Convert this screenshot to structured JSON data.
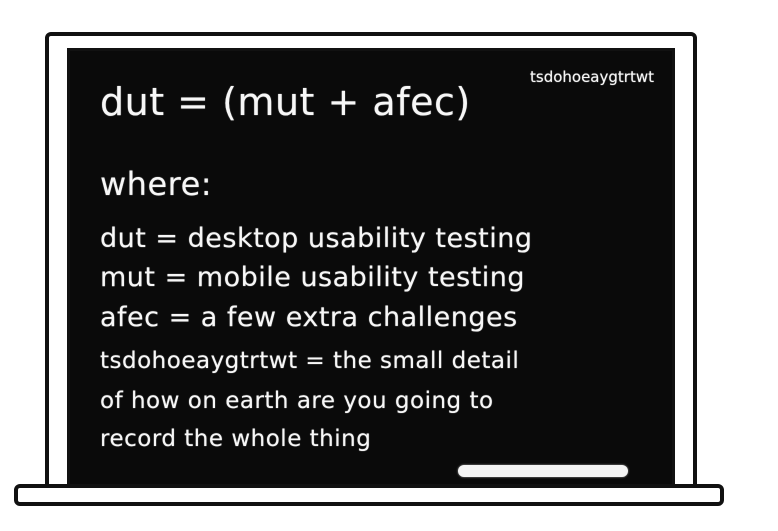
{
  "formula": {
    "main": "dut = (mut + afec)",
    "exponent": "tsdohoeaygtrtwt"
  },
  "where_label": "where:",
  "definitions": [
    "dut = desktop usability testing",
    "mut = mobile usability testing",
    "afec = a few extra challenges"
  ],
  "note_lines": [
    "tsdohoeaygtrtwt = the small detail",
    "of how on earth are you going to",
    "record the whole thing"
  ],
  "colors": {
    "chalkboard": "#0a0a0a",
    "chalk": "#f7f7f7",
    "frame_outline": "#111111",
    "frame_fill": "#ffffff"
  }
}
